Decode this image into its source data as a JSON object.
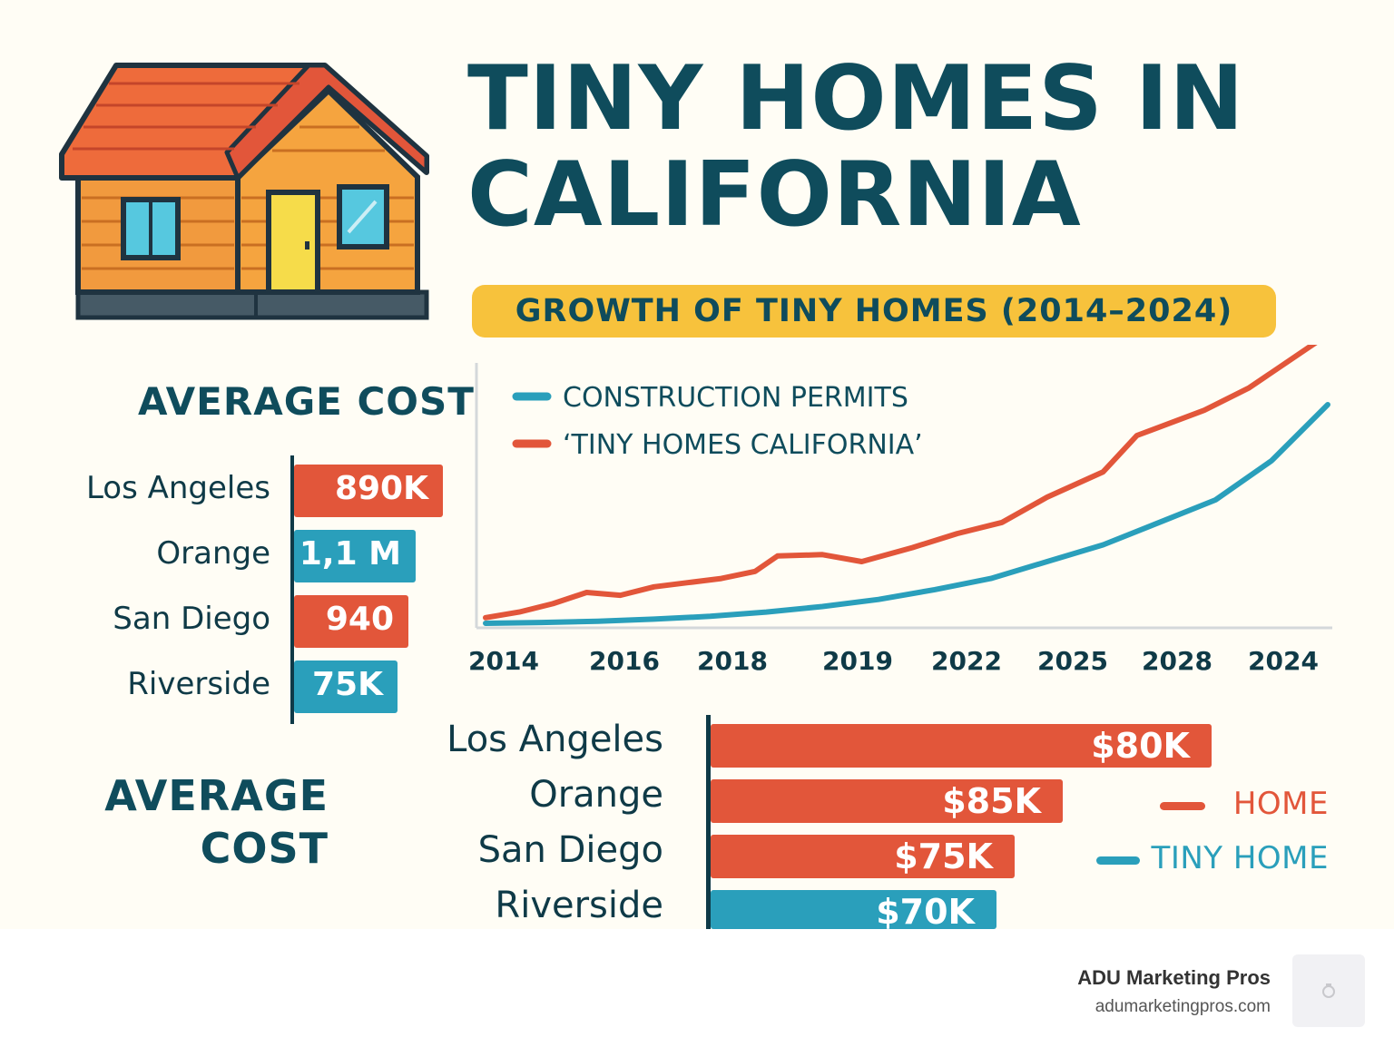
{
  "title_line1": "TINY HOMES IN",
  "title_line2": "CALIFORNIA",
  "icons": {
    "house": "house-icon",
    "logo": "brand-logo-icon"
  },
  "colors": {
    "navy": "#0f4c5c",
    "red": "#e2563a",
    "teal": "#2a9fbb",
    "yellow": "#f7c23c",
    "background": "#fffdf5"
  },
  "cost_panel_top": {
    "title": "AVERAGE COST",
    "rows": [
      {
        "city": "Los Angeles",
        "label": "890K",
        "color": "red"
      },
      {
        "city": "Orange",
        "label": "1,1 M",
        "color": "teal"
      },
      {
        "city": "San Diego",
        "label": "940",
        "color": "red"
      },
      {
        "city": "Riverside",
        "label": "75K",
        "color": "teal"
      }
    ]
  },
  "cost_panel_bottom": {
    "title_line1": "AVERAGE",
    "title_line2": "COST",
    "legend": [
      {
        "name": "HOME",
        "color": "red"
      },
      {
        "name": "TINY HOME",
        "color": "teal"
      }
    ],
    "rows": [
      {
        "city": "Los Angeles",
        "label": "$80K",
        "color": "red"
      },
      {
        "city": "Orange",
        "label": "$85K",
        "color": "red"
      },
      {
        "city": "San Diego",
        "label": "$75K",
        "color": "red"
      },
      {
        "city": "Riverside",
        "label": "$70K",
        "color": "teal"
      }
    ]
  },
  "chart_data": {
    "type": "line",
    "title": "GROWTH OF TINY HOMES (2014–2024)",
    "xlabel": "",
    "ylabel": "",
    "x": [
      "2014",
      "2016",
      "2018",
      "2019",
      "2022",
      "2025",
      "2028",
      "2024"
    ],
    "legend_position": "top-left",
    "grid": false,
    "y_axis_labels": false,
    "ylim": [
      0,
      100
    ],
    "series": [
      {
        "name": "CONSTRUCTION PERMITS",
        "color": "#2a9fbb",
        "points": [
          [
            0,
            0
          ],
          [
            0.5,
            0.3
          ],
          [
            1,
            0.7
          ],
          [
            1.5,
            1.5
          ],
          [
            2,
            2.5
          ],
          [
            2.5,
            4
          ],
          [
            3,
            6
          ],
          [
            3.5,
            8.5
          ],
          [
            4,
            12
          ],
          [
            4.5,
            16
          ],
          [
            5,
            22
          ],
          [
            5.5,
            28
          ],
          [
            6,
            36
          ],
          [
            6.5,
            44
          ],
          [
            7,
            58
          ],
          [
            7.5,
            78
          ]
        ]
      },
      {
        "name": "‘TINY HOMES CALIFORNIA’",
        "color": "#e2563a",
        "points": [
          [
            0,
            2
          ],
          [
            0.3,
            4
          ],
          [
            0.6,
            7
          ],
          [
            0.9,
            11
          ],
          [
            1.2,
            10
          ],
          [
            1.5,
            13
          ],
          [
            1.8,
            14.5
          ],
          [
            2.1,
            16
          ],
          [
            2.4,
            18.5
          ],
          [
            2.6,
            24
          ],
          [
            3.0,
            24.5
          ],
          [
            3.35,
            22
          ],
          [
            3.8,
            27
          ],
          [
            4.2,
            32
          ],
          [
            4.6,
            36
          ],
          [
            5.0,
            45
          ],
          [
            5.5,
            54
          ],
          [
            5.8,
            67
          ],
          [
            6.4,
            76
          ],
          [
            6.8,
            84
          ],
          [
            7.5,
            103
          ]
        ]
      }
    ]
  },
  "footer": {
    "brand": "ADU Marketing Pros",
    "url": "adumarketingpros.com"
  }
}
